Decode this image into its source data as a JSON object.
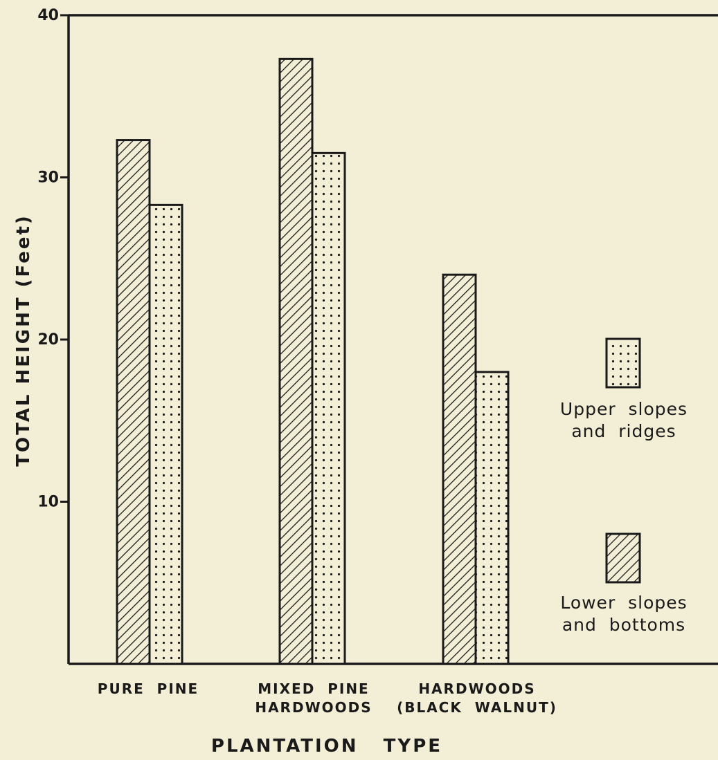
{
  "chart_data": {
    "type": "bar",
    "title": "",
    "xlabel": "PLANTATION   TYPE",
    "ylabel": "TOTAL  HEIGHT  (Feet)",
    "ylim": [
      0,
      40
    ],
    "yticks": [
      "10",
      "20",
      "30",
      "40"
    ],
    "categories": [
      [
        "PURE  PINE"
      ],
      [
        "MIXED  PINE",
        "HARDWOODS"
      ],
      [
        "HARDWOODS",
        "(BLACK  WALNUT)"
      ]
    ],
    "series": [
      {
        "name_lines": [
          "Lower  slopes",
          "and  bottoms"
        ],
        "pattern": "hatch",
        "values": [
          32.3,
          37.3,
          24.0
        ]
      },
      {
        "name_lines": [
          "Upper  slopes",
          "and  ridges"
        ],
        "pattern": "dots",
        "values": [
          28.3,
          31.5,
          18.0
        ]
      }
    ],
    "grid": false,
    "legend_position": "right"
  },
  "colors": {
    "background": "#f3efd6",
    "ink": "#1a1a1a"
  }
}
